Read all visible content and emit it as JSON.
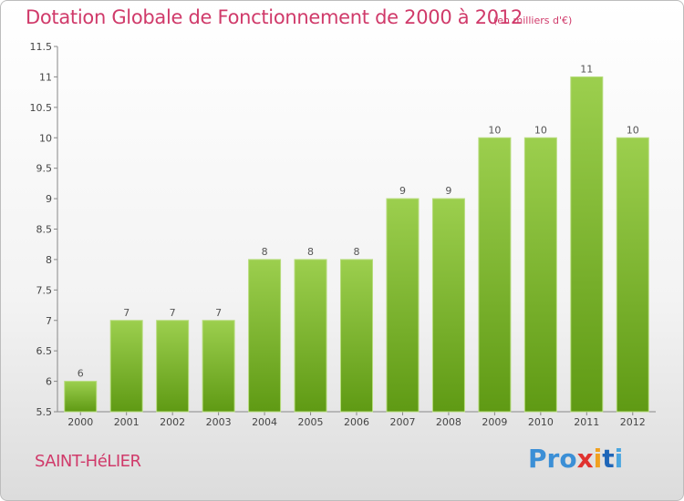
{
  "chart_data": {
    "type": "bar",
    "title": "Dotation Globale de Fonctionnement de 2000 à 2012",
    "unit_note": "(en milliers d'€)",
    "categories": [
      "2000",
      "2001",
      "2002",
      "2003",
      "2004",
      "2005",
      "2006",
      "2007",
      "2008",
      "2009",
      "2010",
      "2011",
      "2012"
    ],
    "values": [
      6,
      7,
      7,
      7,
      8,
      8,
      8,
      9,
      9,
      10,
      10,
      11,
      10
    ],
    "value_labels": [
      "6",
      "7",
      "7",
      "7",
      "8",
      "8",
      "8",
      "9",
      "9",
      "10",
      "10",
      "11",
      "10"
    ],
    "ylim": [
      5.5,
      11.5
    ],
    "yticks": [
      "5.5",
      "6",
      "6.5",
      "7",
      "7.5",
      "8",
      "8.5",
      "9",
      "9.5",
      "10",
      "10.5",
      "11",
      "11.5"
    ],
    "grid": false,
    "bar_color_top": "#9ccf4e",
    "bar_color_bottom": "#5f9a14"
  },
  "footer": {
    "town": "SAINT-HéLIER",
    "logo": [
      "Pro",
      "x",
      "i",
      "t",
      "i"
    ]
  }
}
